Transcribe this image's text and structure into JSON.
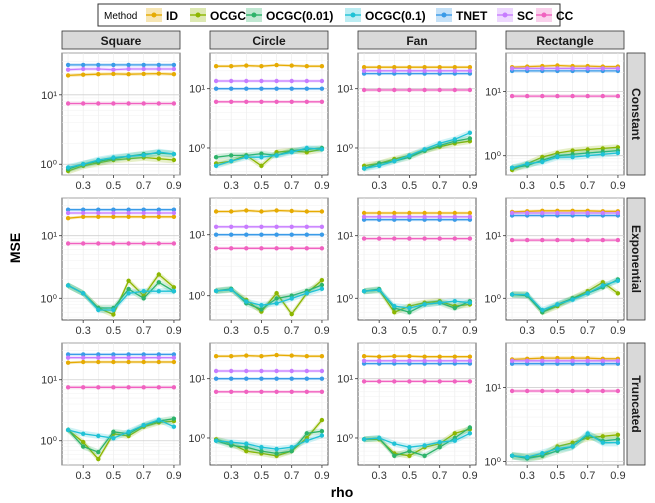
{
  "chart_data": {
    "type": "line",
    "legend_title": "Method",
    "legend_position": "top",
    "xlabel": "rho",
    "ylabel": "MSE",
    "x": [
      0.2,
      0.3,
      0.4,
      0.5,
      0.6,
      0.7,
      0.8,
      0.9
    ],
    "x_ticks": [
      "0.3",
      "0.5",
      "0.7",
      "0.9"
    ],
    "y_scale": "log",
    "y_tick_labels": {
      "1": "10⁰",
      "10": "10¹"
    },
    "columns": [
      "Square",
      "Circle",
      "Fan",
      "Rectangle"
    ],
    "rows": [
      "Constant",
      "Exponential",
      "Truncated"
    ],
    "grid": true,
    "methods": [
      {
        "name": "ID",
        "color": "#E6AB02"
      },
      {
        "name": "OCGC",
        "color": "#8DB600"
      },
      {
        "name": "OCGC(0.01)",
        "color": "#2DB36A"
      },
      {
        "name": "OCGC(0.1)",
        "color": "#1FC2D6"
      },
      {
        "name": "TNET",
        "color": "#3A9BE8"
      },
      {
        "name": "SC",
        "color": "#C77CFF"
      },
      {
        "name": "CC",
        "color": "#F062C0"
      }
    ],
    "panels": [
      {
        "row": "Constant",
        "col": "Square",
        "ylim": [
          0.7,
          40
        ],
        "series": {
          "ID": [
            19,
            19.5,
            19.8,
            20,
            19.8,
            20,
            20.2,
            19.8
          ],
          "OCGC": [
            0.8,
            0.95,
            1.05,
            1.15,
            1.2,
            1.25,
            1.2,
            1.15
          ],
          "OCGC(0.01)": [
            0.85,
            1.0,
            1.1,
            1.2,
            1.3,
            1.4,
            1.45,
            1.4
          ],
          "OCGC(0.1)": [
            0.9,
            1.0,
            1.15,
            1.25,
            1.3,
            1.35,
            1.5,
            1.4
          ],
          "TNET": [
            27,
            27,
            27,
            27,
            27,
            27,
            27,
            27
          ],
          "SC": [
            23,
            23.5,
            23.5,
            23,
            23.5,
            23.5,
            23.5,
            23.5
          ],
          "CC": [
            7.5,
            7.5,
            7.5,
            7.5,
            7.5,
            7.5,
            7.5,
            7.5
          ]
        }
      },
      {
        "row": "Constant",
        "col": "Circle",
        "ylim": [
          0.35,
          40
        ],
        "series": {
          "ID": [
            24,
            24,
            24.5,
            24,
            25,
            24.5,
            24,
            24
          ],
          "OCGC": [
            0.55,
            0.6,
            0.75,
            0.5,
            0.85,
            0.9,
            0.85,
            0.95
          ],
          "OCGC(0.01)": [
            0.7,
            0.75,
            0.75,
            0.8,
            0.75,
            0.9,
            0.95,
            1.0
          ],
          "OCGC(0.1)": [
            0.5,
            0.6,
            0.7,
            0.7,
            0.75,
            0.85,
            1.0,
            0.95
          ],
          "TNET": [
            10,
            10,
            10,
            10,
            10,
            10,
            10,
            10
          ],
          "SC": [
            13.5,
            13.5,
            13.5,
            13.5,
            13.5,
            13.5,
            13.5,
            13.5
          ],
          "CC": [
            6,
            6,
            6,
            6,
            6,
            6,
            6,
            6
          ]
        }
      },
      {
        "row": "Constant",
        "col": "Fan",
        "ylim": [
          0.35,
          40
        ],
        "series": {
          "ID": [
            23,
            23,
            23,
            23,
            23,
            23,
            23,
            23
          ],
          "OCGC": [
            0.5,
            0.55,
            0.65,
            0.75,
            0.9,
            1.05,
            1.2,
            1.3
          ],
          "OCGC(0.01)": [
            0.45,
            0.55,
            0.6,
            0.7,
            0.9,
            1.1,
            1.3,
            1.45
          ],
          "OCGC(0.1)": [
            0.45,
            0.5,
            0.6,
            0.75,
            0.95,
            1.2,
            1.4,
            1.8
          ],
          "TNET": [
            18,
            18,
            18,
            18,
            18,
            18,
            18,
            18
          ],
          "SC": [
            20,
            20,
            20,
            20,
            20,
            20,
            20,
            20
          ],
          "CC": [
            9.5,
            9.5,
            9.5,
            9.5,
            9.5,
            9.5,
            9.5,
            9.5
          ]
        }
      },
      {
        "row": "Constant",
        "col": "Rectangle",
        "ylim": [
          0.5,
          40
        ],
        "series": {
          "ID": [
            24,
            24.5,
            25,
            25.5,
            25,
            25,
            24.5,
            24.5
          ],
          "OCGC": [
            0.6,
            0.75,
            0.95,
            1.1,
            1.2,
            1.25,
            1.3,
            1.35
          ],
          "OCGC(0.01)": [
            0.65,
            0.7,
            0.85,
            1.0,
            1.05,
            1.1,
            1.15,
            1.2
          ],
          "OCGC(0.1)": [
            0.65,
            0.75,
            0.8,
            0.95,
            0.95,
            1.0,
            1.05,
            1.1
          ],
          "TNET": [
            21,
            21,
            21,
            21,
            21,
            21,
            21,
            21
          ],
          "SC": [
            23,
            23,
            23,
            23,
            23,
            23,
            23,
            23
          ],
          "CC": [
            8.5,
            8.5,
            8.5,
            8.5,
            8.5,
            8.5,
            8.5,
            8.5
          ]
        }
      },
      {
        "row": "Exponential",
        "col": "Square",
        "ylim": [
          0.45,
          40
        ],
        "series": {
          "ID": [
            19,
            20,
            20,
            20,
            20,
            20,
            20,
            20
          ],
          "OCGC": [
            1.6,
            1.2,
            0.7,
            0.55,
            1.9,
            1.1,
            2.4,
            1.5
          ],
          "OCGC(0.01)": [
            1.6,
            1.2,
            0.7,
            0.7,
            1.4,
            1.0,
            1.8,
            1.3
          ],
          "OCGC(0.1)": [
            1.6,
            1.2,
            0.65,
            0.65,
            1.2,
            1.3,
            1.3,
            1.3
          ],
          "TNET": [
            26,
            26,
            26,
            26,
            26,
            26,
            26,
            26
          ],
          "SC": [
            23,
            23,
            23,
            23,
            23,
            23,
            23,
            23
          ],
          "CC": [
            7.5,
            7.5,
            7.5,
            7.5,
            7.5,
            7.5,
            7.5,
            7.5
          ]
        }
      },
      {
        "row": "Exponential",
        "col": "Circle",
        "ylim": [
          0.4,
          40
        ],
        "series": {
          "ID": [
            24,
            24,
            25,
            24,
            25,
            24.5,
            24,
            24
          ],
          "OCGC": [
            1.2,
            1.25,
            0.85,
            0.55,
            1.1,
            0.5,
            1.1,
            1.8
          ],
          "OCGC(0.01)": [
            1.2,
            1.3,
            0.75,
            0.6,
            0.9,
            1.0,
            1.2,
            1.5
          ],
          "OCGC(0.1)": [
            1.2,
            1.25,
            0.8,
            0.7,
            0.75,
            0.9,
            1.1,
            1.3
          ],
          "TNET": [
            10,
            10,
            10,
            10,
            10,
            10,
            10,
            10
          ],
          "SC": [
            13.5,
            13.5,
            13.5,
            13.5,
            13.5,
            13.5,
            13.5,
            13.5
          ],
          "CC": [
            6,
            6,
            6,
            6,
            6,
            6,
            6,
            6
          ]
        }
      },
      {
        "row": "Exponential",
        "col": "Fan",
        "ylim": [
          0.45,
          40
        ],
        "series": {
          "ID": [
            23,
            23,
            23,
            23,
            23,
            23,
            23,
            23
          ],
          "OCGC": [
            1.3,
            1.35,
            0.6,
            0.75,
            0.85,
            0.9,
            0.75,
            0.8
          ],
          "OCGC(0.01)": [
            1.3,
            1.4,
            0.7,
            0.6,
            0.8,
            0.85,
            0.7,
            0.9
          ],
          "OCGC(0.1)": [
            1.3,
            1.35,
            0.75,
            0.7,
            0.8,
            0.85,
            0.9,
            0.85
          ],
          "TNET": [
            18,
            18,
            18,
            18,
            18,
            18,
            18,
            18
          ],
          "SC": [
            20,
            20,
            20,
            20,
            20,
            20,
            20,
            20
          ],
          "CC": [
            9,
            9,
            9,
            9,
            9,
            9,
            9,
            9
          ]
        }
      },
      {
        "row": "Exponential",
        "col": "Rectangle",
        "ylim": [
          0.45,
          40
        ],
        "series": {
          "ID": [
            24,
            24.5,
            25,
            25,
            25,
            25,
            24.5,
            24.5
          ],
          "OCGC": [
            1.15,
            1.15,
            0.6,
            0.75,
            1.0,
            1.3,
            1.8,
            1.2
          ],
          "OCGC(0.01)": [
            1.15,
            1.1,
            0.6,
            0.8,
            1.0,
            1.2,
            1.5,
            2.0
          ],
          "OCGC(0.1)": [
            1.15,
            1.15,
            0.65,
            0.8,
            0.95,
            1.2,
            1.6,
            1.9
          ],
          "TNET": [
            21,
            21,
            21,
            21,
            21,
            21,
            21,
            21
          ],
          "SC": [
            23,
            23,
            23,
            23,
            23,
            23,
            23,
            23
          ],
          "CC": [
            8.5,
            8.5,
            8.5,
            8.5,
            8.5,
            8.5,
            8.5,
            8.5
          ]
        }
      },
      {
        "row": "Truncated",
        "col": "Square",
        "ylim": [
          0.4,
          40
        ],
        "series": {
          "ID": [
            19,
            19.5,
            19.5,
            19.5,
            19.5,
            19.5,
            19.5,
            19.5
          ],
          "OCGC": [
            1.5,
            0.95,
            0.5,
            1.3,
            1.2,
            1.7,
            2.0,
            2.1
          ],
          "OCGC(0.01)": [
            1.5,
            0.8,
            0.65,
            1.4,
            1.3,
            1.8,
            2.1,
            2.3
          ],
          "OCGC(0.1)": [
            1.5,
            1.3,
            1.2,
            1.1,
            1.4,
            1.8,
            2.2,
            1.7
          ],
          "TNET": [
            26,
            26,
            26,
            26,
            26,
            26,
            26,
            26
          ],
          "SC": [
            23,
            23,
            23,
            23,
            23,
            23,
            23,
            23
          ],
          "CC": [
            7.5,
            7.5,
            7.5,
            7.5,
            7.5,
            7.5,
            7.5,
            7.5
          ]
        }
      },
      {
        "row": "Truncated",
        "col": "Circle",
        "ylim": [
          0.35,
          40
        ],
        "series": {
          "ID": [
            24,
            24,
            24.5,
            24,
            25,
            24.5,
            24,
            24
          ],
          "OCGC": [
            0.95,
            0.8,
            0.6,
            0.55,
            0.5,
            0.6,
            1.0,
            2.0
          ],
          "OCGC(0.01)": [
            0.9,
            0.75,
            0.7,
            0.6,
            0.55,
            0.6,
            1.2,
            1.3
          ],
          "OCGC(0.1)": [
            0.9,
            0.85,
            0.8,
            0.7,
            0.65,
            0.7,
            0.9,
            1.1
          ],
          "TNET": [
            10,
            10,
            10,
            10,
            10,
            10,
            10,
            10
          ],
          "SC": [
            13.5,
            13.5,
            13.5,
            13.5,
            13.5,
            13.5,
            13.5,
            13.5
          ],
          "CC": [
            6,
            6,
            6,
            6,
            6,
            6,
            6,
            6
          ]
        }
      },
      {
        "row": "Truncated",
        "col": "Fan",
        "ylim": [
          0.35,
          40
        ],
        "series": {
          "ID": [
            24,
            23.5,
            24,
            24,
            23.5,
            23.5,
            23.5,
            23.5
          ],
          "OCGC": [
            0.95,
            0.95,
            0.55,
            0.5,
            0.7,
            0.8,
            1.2,
            1.4
          ],
          "OCGC(0.01)": [
            0.95,
            1.0,
            0.5,
            0.6,
            0.5,
            0.7,
            1.0,
            1.5
          ],
          "OCGC(0.1)": [
            0.95,
            1.0,
            0.8,
            0.7,
            0.75,
            0.85,
            0.9,
            1.2
          ],
          "TNET": [
            18,
            18,
            18,
            18,
            18,
            18,
            18,
            18
          ],
          "SC": [
            20,
            20,
            20,
            20,
            20,
            20,
            20,
            20
          ],
          "CC": [
            9,
            9,
            9,
            9,
            9,
            9,
            9,
            9
          ]
        }
      },
      {
        "row": "Truncated",
        "col": "Rectangle",
        "ylim": [
          0.9,
          40
        ],
        "series": {
          "ID": [
            24,
            24.5,
            25,
            25,
            25,
            25,
            24.5,
            24.5
          ],
          "OCGC": [
            1.2,
            1.15,
            1.2,
            1.6,
            1.8,
            2.1,
            2.2,
            2.3
          ],
          "OCGC(0.01)": [
            1.2,
            1.1,
            1.2,
            1.4,
            1.6,
            2.3,
            1.9,
            2.0
          ],
          "OCGC(0.1)": [
            1.2,
            1.15,
            1.3,
            1.5,
            1.6,
            2.4,
            1.8,
            1.8
          ],
          "TNET": [
            21,
            21,
            21,
            21,
            21,
            21,
            21,
            21
          ],
          "SC": [
            23,
            23,
            23,
            23,
            23,
            23,
            23,
            23
          ],
          "CC": [
            9,
            9,
            9,
            9,
            9,
            9,
            9,
            9
          ]
        }
      }
    ]
  }
}
